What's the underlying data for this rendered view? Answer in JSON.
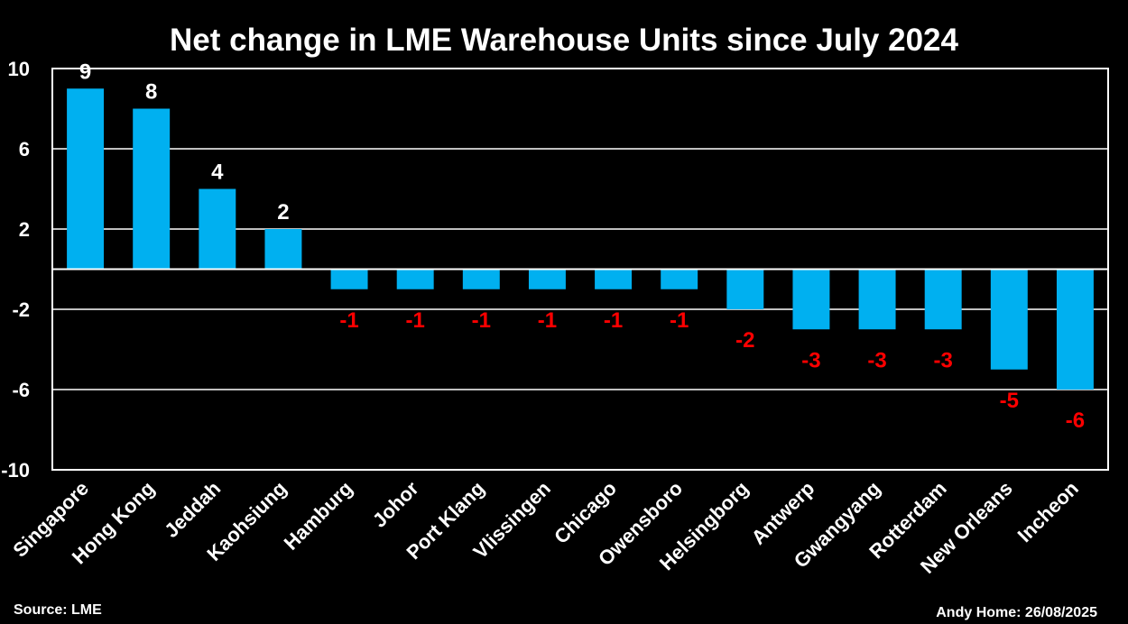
{
  "chart_data": {
    "type": "bar",
    "title": "Net change in LME Warehouse Units since July 2024",
    "xlabel": "",
    "ylabel": "",
    "categories": [
      "Singapore",
      "Hong Kong",
      "Jeddah",
      "Kaohsiung",
      "Hamburg",
      "Johor",
      "Port Klang",
      "Vlissingen",
      "Chicago",
      "Owensboro",
      "Helsingborg",
      "Antwerp",
      "Gwangyang",
      "Rotterdam",
      "New Orleans",
      "Incheon"
    ],
    "values": [
      9,
      8,
      4,
      2,
      -1,
      -1,
      -1,
      -1,
      -1,
      -1,
      -2,
      -3,
      -3,
      -3,
      -5,
      -6
    ],
    "ylim": [
      -10,
      10
    ],
    "yticks": [
      10,
      6,
      2,
      -2,
      -6,
      -10
    ],
    "grid": true,
    "legend": "none"
  },
  "footer": {
    "source": "Source: LME",
    "credit": "Andy Home: 26/08/2025"
  },
  "colors": {
    "background": "#000000",
    "bar": "#00b0f0",
    "positive_label": "#ffffff",
    "negative_label": "#ff0000",
    "grid": "#ffffff",
    "text": "#ffffff"
  }
}
